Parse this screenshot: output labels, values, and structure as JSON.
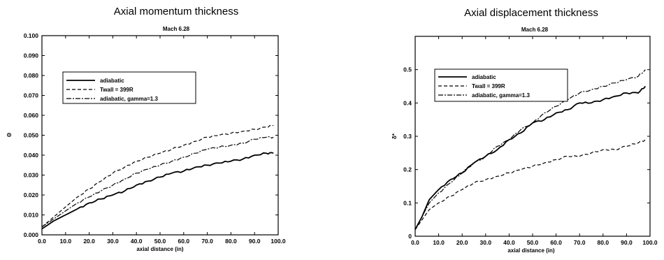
{
  "chart_data": [
    {
      "type": "line",
      "title": "Axial momentum thickness",
      "subtitle": "Mach 6.28",
      "xlabel": "axial distance (in)",
      "ylabel": "Θ",
      "xlim": [
        0,
        100
      ],
      "ylim": [
        0,
        0.1
      ],
      "xticks": [
        "0.0",
        "10.0",
        "20.0",
        "30.0",
        "40.0",
        "50.0",
        "60.0",
        "70.0",
        "80.0",
        "90.0",
        "100.0"
      ],
      "yticks": [
        "0.000",
        "0.010",
        "0.020",
        "0.030",
        "0.040",
        "0.050",
        "0.060",
        "0.070",
        "0.080",
        "0.090",
        "0.100"
      ],
      "grid": false,
      "legend_position": "upper-left",
      "series": [
        {
          "name": "adiabatic",
          "style": "solid",
          "x": [
            0,
            5,
            10,
            15,
            20,
            25,
            30,
            35,
            40,
            45,
            50,
            55,
            60,
            65,
            70,
            75,
            80,
            85,
            90,
            95,
            98
          ],
          "y": [
            0.003,
            0.007,
            0.01,
            0.013,
            0.016,
            0.018,
            0.02,
            0.022,
            0.025,
            0.027,
            0.029,
            0.031,
            0.032,
            0.034,
            0.035,
            0.036,
            0.037,
            0.038,
            0.04,
            0.041,
            0.041
          ]
        },
        {
          "name": "Twall = 399R",
          "style": "dashed",
          "x": [
            0,
            5,
            10,
            15,
            20,
            25,
            30,
            35,
            40,
            45,
            50,
            55,
            60,
            65,
            70,
            75,
            80,
            85,
            90,
            95,
            98
          ],
          "y": [
            0.004,
            0.009,
            0.014,
            0.019,
            0.023,
            0.027,
            0.031,
            0.034,
            0.037,
            0.039,
            0.041,
            0.043,
            0.045,
            0.047,
            0.049,
            0.05,
            0.051,
            0.052,
            0.053,
            0.054,
            0.055
          ]
        },
        {
          "name": "adiabatic, gamma=1.3",
          "style": "dashdot",
          "x": [
            0,
            5,
            10,
            15,
            20,
            25,
            30,
            35,
            40,
            45,
            50,
            55,
            60,
            65,
            70,
            75,
            80,
            85,
            90,
            95,
            98
          ],
          "y": [
            0.004,
            0.008,
            0.012,
            0.016,
            0.019,
            0.022,
            0.025,
            0.028,
            0.031,
            0.033,
            0.035,
            0.037,
            0.039,
            0.041,
            0.043,
            0.044,
            0.045,
            0.046,
            0.048,
            0.049,
            0.049
          ]
        }
      ]
    },
    {
      "type": "line",
      "title": "Axial displacement thickness",
      "subtitle": "Mach 6.28",
      "xlabel": "axial distance (in)",
      "ylabel": "δ*",
      "xlim": [
        0,
        100
      ],
      "ylim": [
        0,
        0.6
      ],
      "xticks": [
        "0.0",
        "10.0",
        "20.0",
        "30.0",
        "40.0",
        "50.0",
        "60.0",
        "70.0",
        "80.0",
        "90.0",
        "100.0"
      ],
      "yticks": [
        "0",
        "0.1",
        "0.2",
        "0.3",
        "0.4",
        "0.5"
      ],
      "yticks_values": [
        0,
        0.1,
        0.2,
        0.3,
        0.4,
        0.5
      ],
      "grid": false,
      "legend_position": "upper-left",
      "series": [
        {
          "name": "adiabatic",
          "style": "solid",
          "x": [
            0,
            3,
            6,
            10,
            15,
            20,
            25,
            30,
            35,
            40,
            45,
            50,
            55,
            60,
            65,
            70,
            75,
            80,
            85,
            90,
            95,
            98
          ],
          "y": [
            0.02,
            0.06,
            0.11,
            0.14,
            0.17,
            0.19,
            0.22,
            0.24,
            0.26,
            0.29,
            0.31,
            0.34,
            0.35,
            0.37,
            0.38,
            0.4,
            0.4,
            0.41,
            0.42,
            0.43,
            0.43,
            0.45
          ]
        },
        {
          "name": "Twall = 399R",
          "style": "dashed",
          "x": [
            0,
            3,
            6,
            10,
            15,
            20,
            25,
            30,
            35,
            40,
            45,
            50,
            55,
            60,
            65,
            70,
            75,
            80,
            85,
            90,
            95,
            98
          ],
          "y": [
            0.02,
            0.05,
            0.08,
            0.1,
            0.12,
            0.14,
            0.16,
            0.17,
            0.18,
            0.19,
            0.2,
            0.21,
            0.22,
            0.23,
            0.24,
            0.24,
            0.25,
            0.26,
            0.26,
            0.27,
            0.28,
            0.29
          ]
        },
        {
          "name": "adiabatic, gamma=1.3",
          "style": "dashdot",
          "x": [
            0,
            3,
            6,
            10,
            15,
            20,
            25,
            30,
            35,
            40,
            45,
            50,
            55,
            60,
            65,
            70,
            75,
            80,
            85,
            90,
            95,
            98
          ],
          "y": [
            0.02,
            0.06,
            0.1,
            0.13,
            0.16,
            0.19,
            0.22,
            0.24,
            0.27,
            0.29,
            0.32,
            0.34,
            0.37,
            0.39,
            0.41,
            0.43,
            0.44,
            0.45,
            0.46,
            0.47,
            0.48,
            0.5
          ]
        }
      ]
    }
  ]
}
